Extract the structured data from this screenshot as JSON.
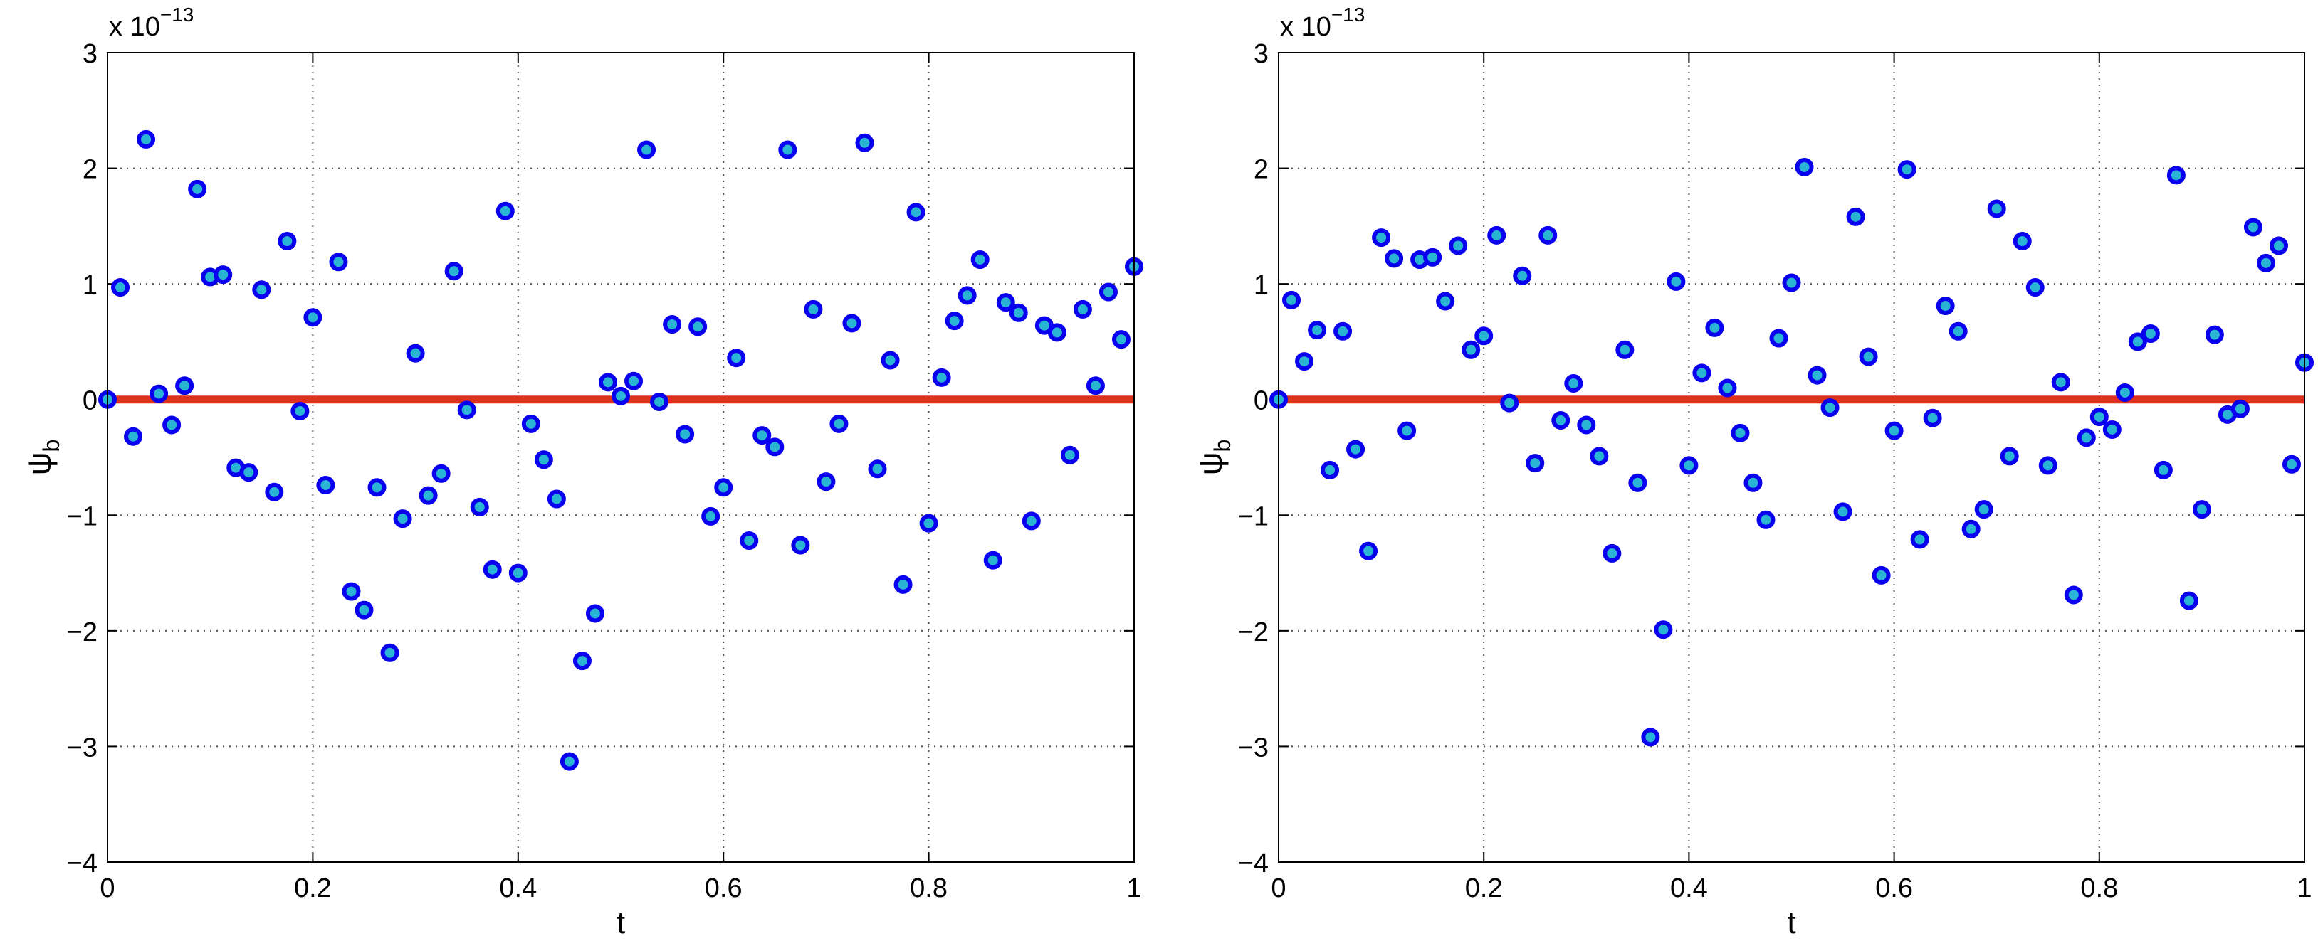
{
  "chart_data": [
    {
      "type": "scatter",
      "xlabel": "t",
      "ylabel_base": "ψ",
      "ylabel_sub": "b",
      "exponent_prefix": "x 10",
      "exponent_power": "−13",
      "xlim": [
        0,
        1
      ],
      "ylim": [
        -4,
        3
      ],
      "x_ticks": [
        0,
        0.2,
        0.4,
        0.6,
        0.8,
        1
      ],
      "x_tick_labels": [
        "0",
        "0.2",
        "0.4",
        "0.6",
        "0.8",
        "1"
      ],
      "y_ticks": [
        -4,
        -3,
        -2,
        -1,
        0,
        1,
        2,
        3
      ],
      "y_tick_labels": [
        "−4",
        "−3",
        "−2",
        "−1",
        "0",
        "1",
        "2",
        "3"
      ],
      "grid": true,
      "reference_line": {
        "y": 0,
        "color": "#e0301e"
      },
      "marker_edge_color": "#0a00f0",
      "marker_face_color": "#28b4d2",
      "series": [
        {
          "x": [
            0,
            0.0125,
            0.025,
            0.0375,
            0.05,
            0.0625,
            0.075,
            0.0875,
            0.1,
            0.1125,
            0.125,
            0.1375,
            0.15,
            0.1625,
            0.175,
            0.1875,
            0.2,
            0.2125,
            0.225,
            0.2375,
            0.25,
            0.2625,
            0.275,
            0.2875,
            0.3,
            0.3125,
            0.325,
            0.3375,
            0.35,
            0.3625,
            0.375,
            0.3875,
            0.4,
            0.4125,
            0.425,
            0.4375,
            0.45,
            0.4625,
            0.475,
            0.4875,
            0.5,
            0.5125,
            0.525,
            0.5375,
            0.55,
            0.5625,
            0.575,
            0.5875,
            0.6,
            0.6125,
            0.625,
            0.6375,
            0.65,
            0.6625,
            0.675,
            0.6875,
            0.7,
            0.7125,
            0.725,
            0.7375,
            0.75,
            0.7625,
            0.775,
            0.7875,
            0.8,
            0.8125,
            0.825,
            0.8375,
            0.85,
            0.8625,
            0.875,
            0.8875,
            0.9,
            0.9125,
            0.925,
            0.9375,
            0.95,
            0.9625,
            0.975,
            0.9875,
            1
          ],
          "y": [
            0,
            0.97,
            -0.32,
            2.25,
            0.05,
            -0.22,
            0.12,
            1.82,
            1.06,
            1.08,
            -0.59,
            -0.63,
            0.95,
            -0.8,
            1.37,
            -0.1,
            0.71,
            -0.74,
            1.19,
            -1.66,
            -1.82,
            -0.76,
            -2.19,
            -1.03,
            0.4,
            -0.83,
            -0.64,
            1.11,
            -0.09,
            -0.93,
            -1.47,
            1.63,
            -1.5,
            -0.21,
            -0.52,
            -0.86,
            -3.13,
            -2.26,
            -1.85,
            0.15,
            0.03,
            0.16,
            2.16,
            -0.02,
            0.65,
            -0.3,
            0.63,
            -1.01,
            -0.76,
            0.36,
            -1.22,
            -0.31,
            -0.41,
            2.16,
            -1.26,
            0.78,
            -0.71,
            -0.21,
            0.66,
            2.22,
            -0.6,
            0.34,
            -1.6,
            1.62,
            -1.07,
            0.19,
            0.68,
            0.9,
            1.21,
            -1.39,
            0.84,
            0.75,
            -1.05,
            0.64,
            0.58,
            -0.48,
            0.78,
            0.12,
            0.93,
            0.52,
            1.15
          ]
        }
      ]
    },
    {
      "type": "scatter",
      "xlabel": "t",
      "ylabel_base": "ψ",
      "ylabel_sub": "b",
      "exponent_prefix": "x 10",
      "exponent_power": "−13",
      "xlim": [
        0,
        1
      ],
      "ylim": [
        -4,
        3
      ],
      "x_ticks": [
        0,
        0.2,
        0.4,
        0.6,
        0.8,
        1
      ],
      "x_tick_labels": [
        "0",
        "0.2",
        "0.4",
        "0.6",
        "0.8",
        "1"
      ],
      "y_ticks": [
        -4,
        -3,
        -2,
        -1,
        0,
        1,
        2,
        3
      ],
      "y_tick_labels": [
        "−4",
        "−3",
        "−2",
        "−1",
        "0",
        "1",
        "2",
        "3"
      ],
      "grid": true,
      "reference_line": {
        "y": 0,
        "color": "#e0301e"
      },
      "marker_edge_color": "#0a00f0",
      "marker_face_color": "#28b4d2",
      "series": [
        {
          "x": [
            0,
            0.0125,
            0.025,
            0.0375,
            0.05,
            0.0625,
            0.075,
            0.0875,
            0.1,
            0.1125,
            0.125,
            0.1375,
            0.15,
            0.1625,
            0.175,
            0.1875,
            0.2,
            0.2125,
            0.225,
            0.2375,
            0.25,
            0.2625,
            0.275,
            0.2875,
            0.3,
            0.3125,
            0.325,
            0.3375,
            0.35,
            0.3625,
            0.375,
            0.3875,
            0.4,
            0.4125,
            0.425,
            0.4375,
            0.45,
            0.4625,
            0.475,
            0.4875,
            0.5,
            0.5125,
            0.525,
            0.5375,
            0.55,
            0.5625,
            0.575,
            0.5875,
            0.6,
            0.6125,
            0.625,
            0.6375,
            0.65,
            0.6625,
            0.675,
            0.6875,
            0.7,
            0.7125,
            0.725,
            0.7375,
            0.75,
            0.7625,
            0.775,
            0.7875,
            0.8,
            0.8125,
            0.825,
            0.8375,
            0.85,
            0.8625,
            0.875,
            0.8875,
            0.9,
            0.9125,
            0.925,
            0.9375,
            0.95,
            0.9625,
            0.975,
            0.9875,
            1
          ],
          "y": [
            0,
            0.86,
            0.33,
            0.6,
            -0.61,
            0.59,
            -0.43,
            -1.31,
            1.4,
            1.22,
            -0.27,
            1.21,
            1.23,
            0.85,
            1.33,
            0.43,
            0.55,
            1.42,
            -0.03,
            1.07,
            -0.55,
            1.42,
            -0.18,
            0.14,
            -0.22,
            -0.49,
            -1.33,
            0.43,
            -0.72,
            -2.92,
            -1.99,
            1.02,
            -0.57,
            0.23,
            0.62,
            0.1,
            -0.29,
            -0.72,
            -1.04,
            0.53,
            1.01,
            2.01,
            0.21,
            -0.07,
            -0.97,
            1.58,
            0.37,
            -1.52,
            -0.27,
            1.99,
            -1.21,
            -0.16,
            0.81,
            0.59,
            -1.12,
            -0.95,
            1.65,
            -0.49,
            1.37,
            0.97,
            -0.57,
            0.15,
            -1.69,
            -0.33,
            -0.15,
            -0.26,
            0.06,
            0.5,
            0.57,
            -0.61,
            1.94,
            -1.74,
            -0.95,
            0.56,
            -0.13,
            -0.08,
            1.49,
            1.18,
            1.33,
            -0.56,
            0.32
          ]
        }
      ]
    }
  ]
}
